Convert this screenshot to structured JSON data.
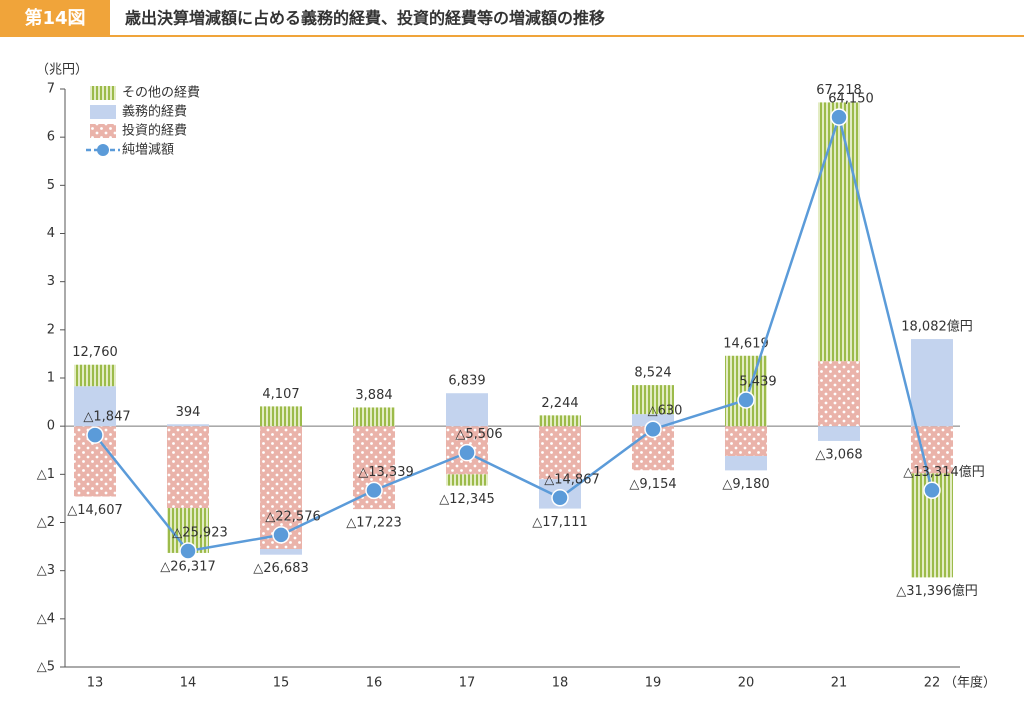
{
  "chart_data": {
    "type": "bar-line",
    "figure_label": "第14図",
    "title": "歳出決算増減額に占める義務的経費、投資的経費等の増減額の推移",
    "y_unit": "（兆円）",
    "x_unit": "（年度）",
    "categories": [
      "13",
      "14",
      "15",
      "16",
      "17",
      "18",
      "19",
      "20",
      "21",
      "22"
    ],
    "series": [
      {
        "name": "投資的経費",
        "color": "#eab3aa",
        "pattern": "dots",
        "values": [
          -1.4607,
          -1.7,
          -2.55,
          -1.7223,
          -1.0,
          -1.1,
          -0.9154,
          -0.62,
          1.35,
          -0.98
        ]
      },
      {
        "name": "義務的経費",
        "color": "#c3d3ee",
        "pattern": "solid",
        "values": [
          0.83,
          0.0394,
          -0.1183,
          0,
          0.6839,
          -0.6111,
          0.25,
          -0.298,
          -0.3068,
          1.8082
        ]
      },
      {
        "name": "その他の経費",
        "color": "#9cbb4a",
        "pattern": "stripes",
        "values": [
          0.446,
          -0.9317,
          0.4107,
          0.3884,
          -0.2345,
          0.2244,
          0.6024,
          1.4619,
          5.3718,
          -2.1596
        ]
      }
    ],
    "line": {
      "name": "純増減額",
      "color": "#5b9bd9",
      "values": [
        -0.1847,
        -2.5923,
        -2.2576,
        -1.3339,
        -0.5506,
        -1.4867,
        -0.063,
        0.5439,
        6.415,
        -1.3314
      ],
      "value_labels": [
        "△1,847",
        "△25,923",
        "△22,576",
        "△13,339",
        "△5,506",
        "△14,867",
        "△630",
        "5,439",
        "64,150",
        "△13,314億円"
      ]
    },
    "positive_total_labels": [
      "12,760",
      "394",
      "4,107",
      "3,884",
      "6,839",
      "2,244",
      "8,524",
      "14,619",
      "67,218",
      "18,082億円"
    ],
    "negative_total_labels": [
      "△14,607",
      "△26,317",
      "△26,683",
      "△17,223",
      "△12,345",
      "△17,111",
      "△9,154",
      "△9,180",
      "△3,068",
      "△31,396億円"
    ],
    "ylim": [
      -5,
      7
    ],
    "yticks": [
      {
        "value": -5,
        "label": "△5"
      },
      {
        "value": -4,
        "label": "△4"
      },
      {
        "value": -3,
        "label": "△3"
      },
      {
        "value": -2,
        "label": "△2"
      },
      {
        "value": -1,
        "label": "△1"
      },
      0,
      1,
      2,
      3,
      4,
      5,
      6,
      7
    ],
    "legend": "top-left"
  }
}
